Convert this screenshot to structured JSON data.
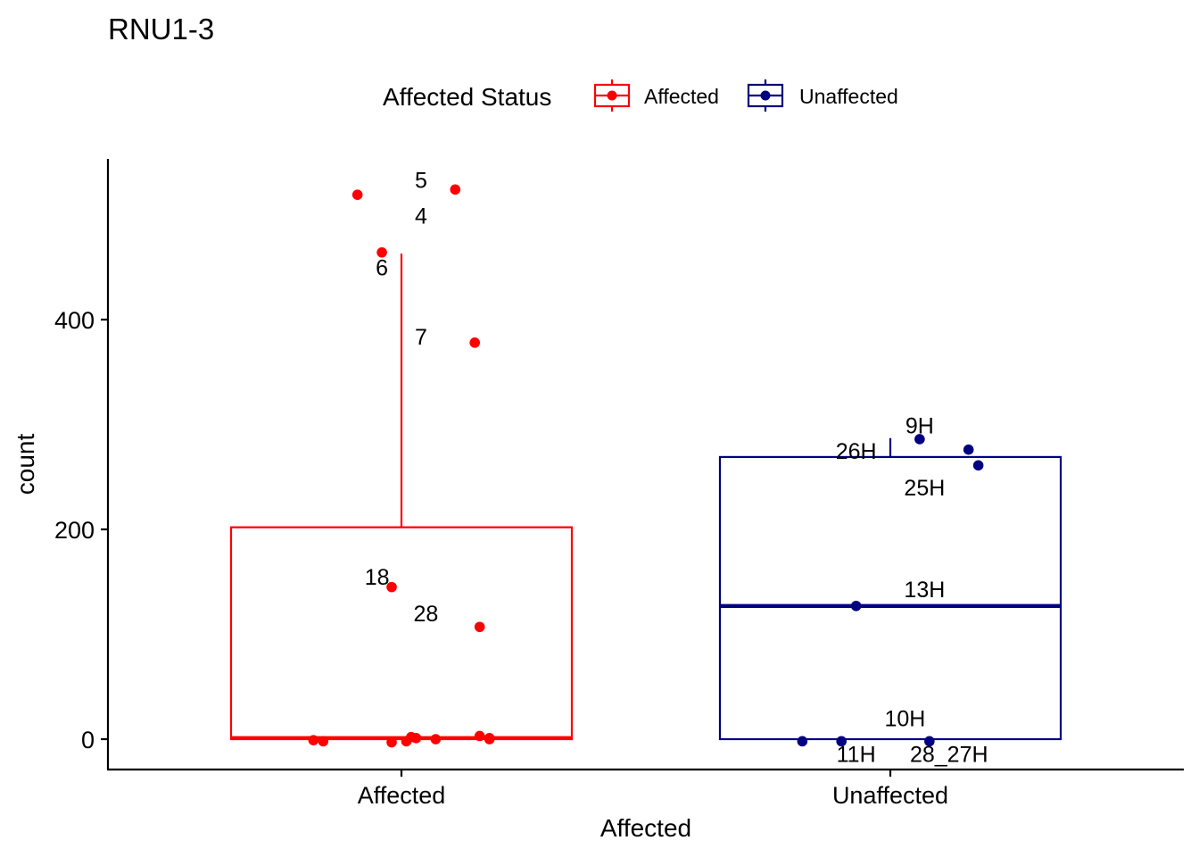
{
  "chart_data": {
    "type": "box",
    "title": "RNU1-3",
    "xlabel": "Affected",
    "ylabel": "count",
    "ylim": [
      -30,
      555
    ],
    "yticks": [
      0,
      200,
      400
    ],
    "categories": [
      "Affected",
      "Unaffected"
    ],
    "legend": {
      "title": "Affected Status",
      "position": "top",
      "entries": [
        {
          "label": "Affected",
          "color": "#ff0000"
        },
        {
          "label": "Unaffected",
          "color": "#000080"
        }
      ]
    },
    "grid": false,
    "series": [
      {
        "name": "Affected",
        "color": "#ff0000",
        "box": {
          "min": 0,
          "q1": 0,
          "median": 1,
          "q3": 202,
          "whisker_high": 463
        },
        "points": [
          {
            "x": -0.09,
            "y": 519
          },
          {
            "x": 0.11,
            "y": 524
          },
          {
            "x": -0.04,
            "y": 464
          },
          {
            "x": 0.15,
            "y": 378
          },
          {
            "x": -0.02,
            "y": 145
          },
          {
            "x": 0.16,
            "y": 107
          },
          {
            "x": -0.18,
            "y": -1
          },
          {
            "x": -0.16,
            "y": -2
          },
          {
            "x": -0.02,
            "y": -3
          },
          {
            "x": 0.01,
            "y": -2
          },
          {
            "x": 0.02,
            "y": 2
          },
          {
            "x": 0.03,
            "y": 1
          },
          {
            "x": 0.07,
            "y": 0
          },
          {
            "x": 0.16,
            "y": 3
          },
          {
            "x": 0.18,
            "y": 0
          },
          {
            "x": 0.18,
            "y": 1
          }
        ],
        "labels": [
          {
            "text": "5",
            "x": 0.04,
            "y": 533
          },
          {
            "text": "4",
            "x": 0.04,
            "y": 499
          },
          {
            "text": "6",
            "x": -0.04,
            "y": 450
          },
          {
            "text": "7",
            "x": 0.04,
            "y": 384
          },
          {
            "text": "18",
            "x": -0.05,
            "y": 155
          },
          {
            "text": "28",
            "x": 0.05,
            "y": 120
          }
        ]
      },
      {
        "name": "Unaffected",
        "color": "#000080",
        "box": {
          "min": 0,
          "q1": 0,
          "median": 127,
          "q3": 269,
          "whisker_high": 287
        },
        "points": [
          {
            "x": 0.06,
            "y": 286
          },
          {
            "x": 0.16,
            "y": 276
          },
          {
            "x": 0.18,
            "y": 261
          },
          {
            "x": -0.07,
            "y": 127
          },
          {
            "x": -0.18,
            "y": -2
          },
          {
            "x": -0.1,
            "y": -2
          },
          {
            "x": 0.08,
            "y": -2
          }
        ],
        "labels": [
          {
            "text": "9H",
            "x": 0.06,
            "y": 299
          },
          {
            "text": "26H",
            "x": -0.07,
            "y": 275
          },
          {
            "text": "25H",
            "x": 0.07,
            "y": 240
          },
          {
            "text": "13H",
            "x": 0.07,
            "y": 143
          },
          {
            "text": "10H",
            "x": 0.03,
            "y": 20
          },
          {
            "text": "11H",
            "x": -0.07,
            "y": -14
          },
          {
            "text": "28_27H",
            "x": 0.12,
            "y": -14
          }
        ]
      }
    ]
  }
}
